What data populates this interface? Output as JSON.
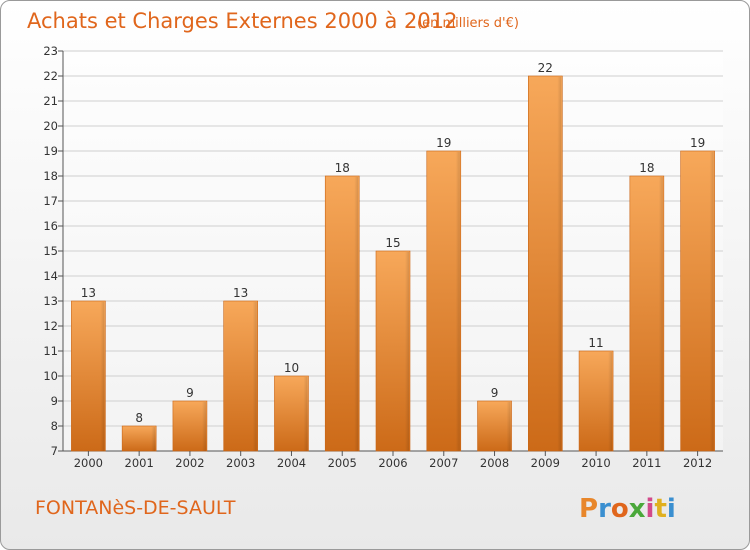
{
  "header": {
    "title": "Achats et Charges Externes 2000 à 2012",
    "unit": "(en milliers d'€)"
  },
  "footer": {
    "commune": "FONTANèS-DE-SAULT",
    "brand": "Proxiti",
    "brand_colors": [
      "#e8862a",
      "#3a8fd0",
      "#e0661c",
      "#4aa83a",
      "#d24a8a",
      "#e0b020",
      "#3a8fd0"
    ]
  },
  "chart_data": {
    "type": "bar",
    "categories": [
      "2000",
      "2001",
      "2002",
      "2003",
      "2004",
      "2005",
      "2006",
      "2007",
      "2008",
      "2009",
      "2010",
      "2011",
      "2012"
    ],
    "values": [
      13,
      8,
      9,
      13,
      10,
      18,
      15,
      19,
      9,
      22,
      11,
      18,
      19
    ],
    "ylim": [
      7,
      23
    ],
    "yticks": [
      7,
      8,
      9,
      10,
      11,
      12,
      13,
      14,
      15,
      16,
      17,
      18,
      19,
      20,
      21,
      22,
      23
    ],
    "grid": true,
    "bar_color": "#f0913a",
    "title": "Achats et Charges Externes 2000 à 2012"
  }
}
